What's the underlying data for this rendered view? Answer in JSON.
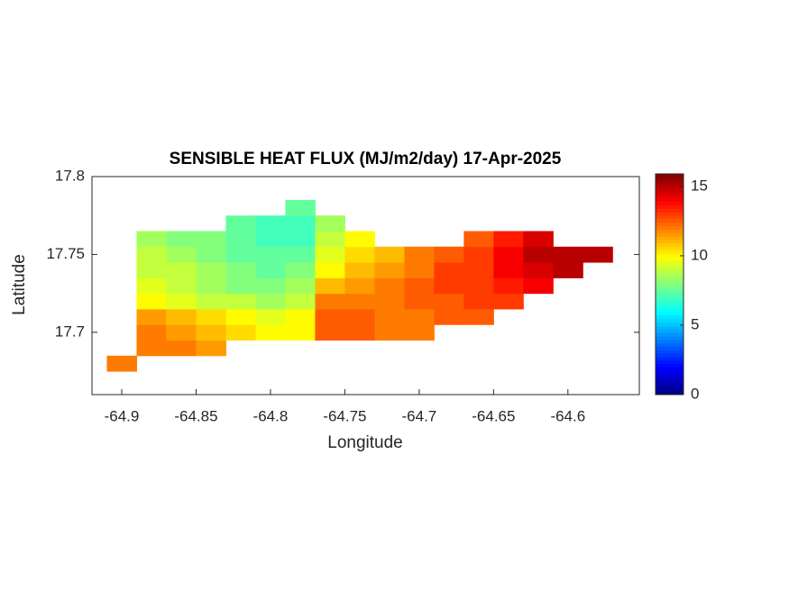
{
  "chart_data": {
    "type": "heatmap",
    "title": "SENSIBLE HEAT FLUX (MJ/m2/day) 17-Apr-2025",
    "x_label": "Longitude",
    "y_label": "Latitude",
    "xlim": [
      -64.92,
      -64.552
    ],
    "ylim": [
      17.66,
      17.8
    ],
    "xticks": [
      -64.9,
      -64.85,
      -64.8,
      -64.75,
      -64.7,
      -64.65,
      -64.6
    ],
    "yticks": [
      17.7,
      17.75,
      17.8
    ],
    "colormap": "jet",
    "clim": [
      0,
      15.9
    ],
    "cticks": [
      0,
      5,
      10,
      15
    ],
    "x": [
      -64.9,
      -64.88,
      -64.86,
      -64.84,
      -64.82,
      -64.8,
      -64.78,
      -64.76,
      -64.74,
      -64.72,
      -64.7,
      -64.68,
      -64.66,
      -64.64,
      -64.62,
      -64.6,
      -64.58
    ],
    "y": [
      17.68,
      17.69,
      17.7,
      17.71,
      17.72,
      17.73,
      17.74,
      17.75,
      17.76,
      17.77,
      17.78
    ],
    "z": [
      [
        12,
        null,
        null,
        null,
        null,
        null,
        null,
        null,
        null,
        null,
        null,
        null,
        null,
        null,
        null,
        null,
        null
      ],
      [
        null,
        12,
        12,
        11.5,
        null,
        null,
        null,
        null,
        null,
        null,
        null,
        null,
        null,
        null,
        null,
        null,
        null
      ],
      [
        null,
        12,
        11.5,
        11,
        10.5,
        10,
        10,
        12.5,
        12.5,
        12,
        12,
        null,
        null,
        null,
        null,
        null,
        null
      ],
      [
        null,
        11.5,
        11,
        10.5,
        10,
        9.5,
        10,
        12.5,
        12.5,
        12,
        12,
        12.5,
        12.5,
        null,
        null,
        null,
        null
      ],
      [
        null,
        10,
        9.5,
        9,
        9,
        8.5,
        9,
        12,
        12,
        12,
        12.5,
        12.5,
        13,
        13,
        null,
        null,
        null
      ],
      [
        null,
        9.5,
        9,
        8.5,
        8,
        8,
        8.5,
        11,
        11.5,
        12,
        12.5,
        13,
        13,
        13.5,
        14,
        null,
        null
      ],
      [
        null,
        9,
        9,
        8.5,
        8,
        7.5,
        8,
        10,
        11,
        11.5,
        12,
        13,
        13,
        14,
        14.5,
        15,
        null
      ],
      [
        null,
        9,
        8.5,
        8,
        7.5,
        7.5,
        7.5,
        9.5,
        10.5,
        11,
        12,
        12.5,
        13,
        14,
        15,
        15,
        15
      ],
      [
        null,
        8.5,
        8,
        8,
        7.5,
        7,
        7,
        9,
        10,
        null,
        null,
        null,
        12.5,
        13.5,
        14.5,
        null,
        null
      ],
      [
        null,
        null,
        null,
        null,
        7.5,
        7,
        7,
        8.5,
        null,
        null,
        null,
        null,
        null,
        null,
        null,
        null,
        null
      ],
      [
        null,
        null,
        null,
        null,
        null,
        null,
        7.5,
        null,
        null,
        null,
        null,
        null,
        null,
        null,
        null,
        null,
        null
      ]
    ]
  }
}
